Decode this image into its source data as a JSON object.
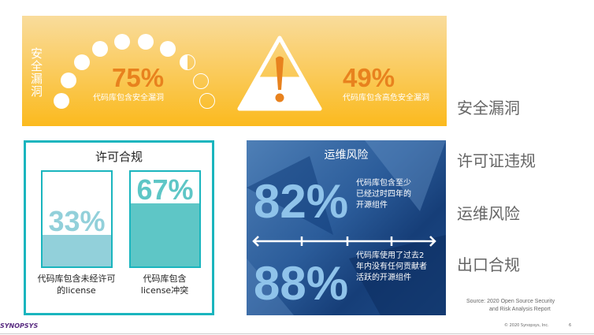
{
  "security": {
    "side_label": "安全漏洞",
    "stat1": {
      "value": "75%",
      "label": "代码库包含安全漏洞"
    },
    "stat2": {
      "value": "49%",
      "label": "代码库包含高危安全漏洞"
    },
    "dots_filled": 7.5,
    "dots_total": 10
  },
  "right_labels": [
    "安全漏洞",
    "许可证违规",
    "运维风险",
    "出口合规"
  ],
  "license": {
    "title": "许可合规",
    "bars": [
      {
        "value": "33%",
        "fill": 0.33,
        "label1": "代码库包含未经许可",
        "label2": "的license",
        "color": "#92d0da"
      },
      {
        "value": "67%",
        "fill": 0.67,
        "label1": "代码库包含",
        "label2": "license冲突",
        "color": "#5ec6c6"
      }
    ]
  },
  "ops": {
    "title": "运维风险",
    "stat1": {
      "value": "82%",
      "lines": [
        "代码库包含至少",
        "已经过时四年的",
        "开源组件"
      ]
    },
    "stat2": {
      "value": "88%",
      "lines": [
        "代码库使用了过去2",
        "年内没有任何贡献者",
        "活跃的开源组件"
      ]
    }
  },
  "footer": {
    "logo": "SYNOPSYS",
    "source1": "Source: 2020 Open Source Security",
    "source2": "and Risk Analysis Report",
    "copyright": "© 2020 Synopsys, Inc.",
    "page": "6"
  },
  "colors": {
    "orange": "#e8821e",
    "teal": "#1ab5be",
    "blue": "#2b5c9a",
    "purple": "#5a2d82"
  }
}
